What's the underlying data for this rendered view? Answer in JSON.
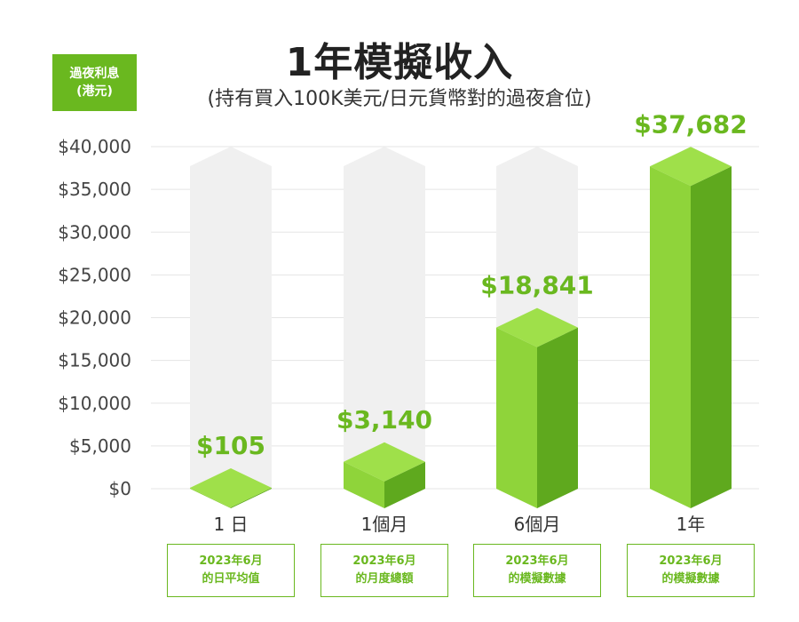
{
  "unit_badge": {
    "line1": "過夜利息",
    "line2": "(港元)"
  },
  "chart_data": {
    "type": "bar",
    "title": "1年模擬收入",
    "subtitle": "(持有買入100K美元/日元貨幣對的過夜倉位)",
    "ylabel": "過夜利息 (港元)",
    "ylim": [
      0,
      40000
    ],
    "yticks": [
      0,
      5000,
      10000,
      15000,
      20000,
      25000,
      30000,
      35000,
      40000
    ],
    "ytick_labels": [
      "$0",
      "$5,000",
      "$10,000",
      "$15,000",
      "$20,000",
      "$25,000",
      "$30,000",
      "$35,000",
      "$40,000"
    ],
    "categories": [
      "1 日",
      "1個月",
      "6個月",
      "1年"
    ],
    "values": [
      105,
      3140,
      18841,
      37682
    ],
    "value_labels": [
      "$105",
      "$3,140",
      "$18,841",
      "$37,682"
    ],
    "notes": [
      [
        "2023年6月",
        "的日平均值"
      ],
      [
        "2023年6月",
        "的月度總額"
      ],
      [
        "2023年6月",
        "的模擬數據"
      ],
      [
        "2023年6月",
        "的模擬數據"
      ]
    ],
    "grid": true,
    "colors": {
      "bar_front": "#8fd43a",
      "bar_side": "#5fa91e",
      "bar_top": "#9fe04a",
      "ghost": "#f0f0f0",
      "accent": "#6ab81f",
      "grid": "#e5e5e5"
    }
  }
}
